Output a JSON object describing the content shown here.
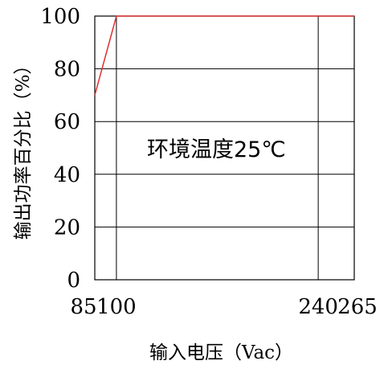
{
  "chart_data": {
    "type": "line",
    "xlabel": "输入电压（Vac）",
    "ylabel": "输出功率百分比（%）",
    "annotation": "环境温度25℃",
    "x_ticks": [
      85,
      100,
      240,
      265
    ],
    "y_ticks": [
      0,
      20,
      40,
      60,
      80,
      100
    ],
    "xlim": [
      85,
      265
    ],
    "ylim": [
      0,
      100
    ],
    "grid": true,
    "line_color": "#e03030",
    "series": [
      {
        "x": [
          85,
          100,
          265
        ],
        "y": [
          70,
          100,
          100
        ]
      }
    ]
  }
}
